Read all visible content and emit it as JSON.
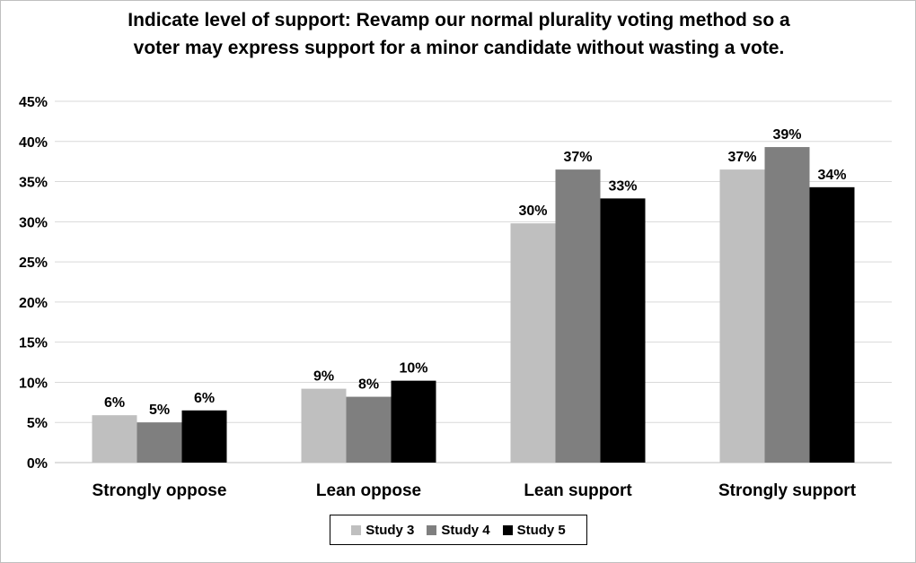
{
  "chart_data": {
    "type": "bar",
    "title_lines": [
      "Indicate level of support: Revamp our normal plurality voting method so a",
      "voter may express support for a minor candidate without wasting a vote."
    ],
    "categories": [
      "Strongly oppose",
      "Lean oppose",
      "Lean support",
      "Strongly support"
    ],
    "series": [
      {
        "name": "Study 3",
        "color": "#bfbfbf",
        "values": [
          5.9,
          9.2,
          29.8,
          36.5
        ],
        "labels": [
          "6%",
          "9%",
          "30%",
          "37%"
        ]
      },
      {
        "name": "Study 4",
        "color": "#7f7f7f",
        "values": [
          5.0,
          8.2,
          36.5,
          39.3
        ],
        "labels": [
          "5%",
          "8%",
          "37%",
          "39%"
        ]
      },
      {
        "name": "Study 5",
        "color": "#000000",
        "values": [
          6.5,
          10.2,
          32.9,
          34.3
        ],
        "labels": [
          "6%",
          "10%",
          "33%",
          "34%"
        ]
      }
    ],
    "ylim": [
      0,
      45
    ],
    "yticks": [
      0,
      5,
      10,
      15,
      20,
      25,
      30,
      35,
      40,
      45
    ],
    "ytick_labels": [
      "0%",
      "5%",
      "10%",
      "15%",
      "20%",
      "25%",
      "30%",
      "35%",
      "40%",
      "45%"
    ],
    "grid": true,
    "legend_position": "bottom"
  }
}
